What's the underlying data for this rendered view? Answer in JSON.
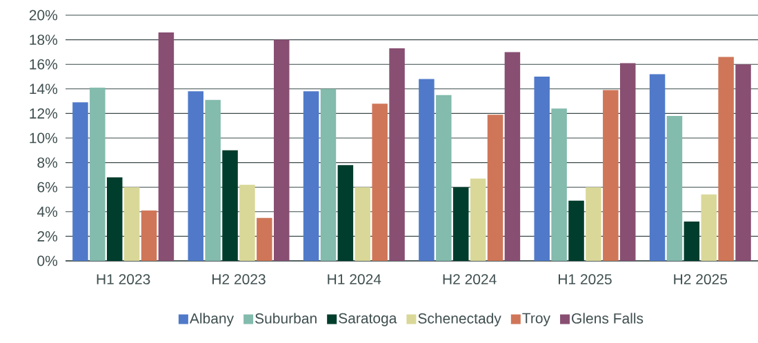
{
  "chart_data": {
    "type": "bar",
    "categories": [
      "H1 2023",
      "H2 2023",
      "H1 2024",
      "H2 2024",
      "H1 2025",
      "H2 2025"
    ],
    "series": [
      {
        "name": "Albany",
        "color": "#507ac9",
        "values": [
          12.9,
          13.8,
          13.8,
          14.8,
          15.0,
          15.2
        ]
      },
      {
        "name": "Suburban",
        "color": "#83bbad",
        "values": [
          14.1,
          13.1,
          14.0,
          13.5,
          12.4,
          11.8
        ]
      },
      {
        "name": "Saratoga",
        "color": "#003d2c",
        "values": [
          6.8,
          9.0,
          7.8,
          6.0,
          4.9,
          3.2
        ]
      },
      {
        "name": "Schenectady",
        "color": "#dad898",
        "values": [
          6.0,
          6.2,
          6.0,
          6.7,
          6.0,
          5.4
        ]
      },
      {
        "name": "Troy",
        "color": "#d07658",
        "values": [
          4.1,
          3.5,
          12.8,
          11.9,
          13.9,
          16.6
        ]
      },
      {
        "name": "Glens Falls",
        "color": "#884f72",
        "values": [
          18.6,
          18.0,
          17.3,
          17.0,
          16.1,
          16.0
        ]
      }
    ],
    "ylim": [
      0,
      20
    ],
    "yticks": [
      {
        "value": 0,
        "label": "0%"
      },
      {
        "value": 2,
        "label": "2%"
      },
      {
        "value": 4,
        "label": "4%"
      },
      {
        "value": 6,
        "label": "6%"
      },
      {
        "value": 8,
        "label": "8%"
      },
      {
        "value": 10,
        "label": "10%"
      },
      {
        "value": 12,
        "label": "12%"
      },
      {
        "value": 14,
        "label": "14%"
      },
      {
        "value": 16,
        "label": "16%"
      },
      {
        "value": 18,
        "label": "18%"
      },
      {
        "value": 20,
        "label": "20%"
      }
    ],
    "grid": "y",
    "legend": "bottom"
  }
}
